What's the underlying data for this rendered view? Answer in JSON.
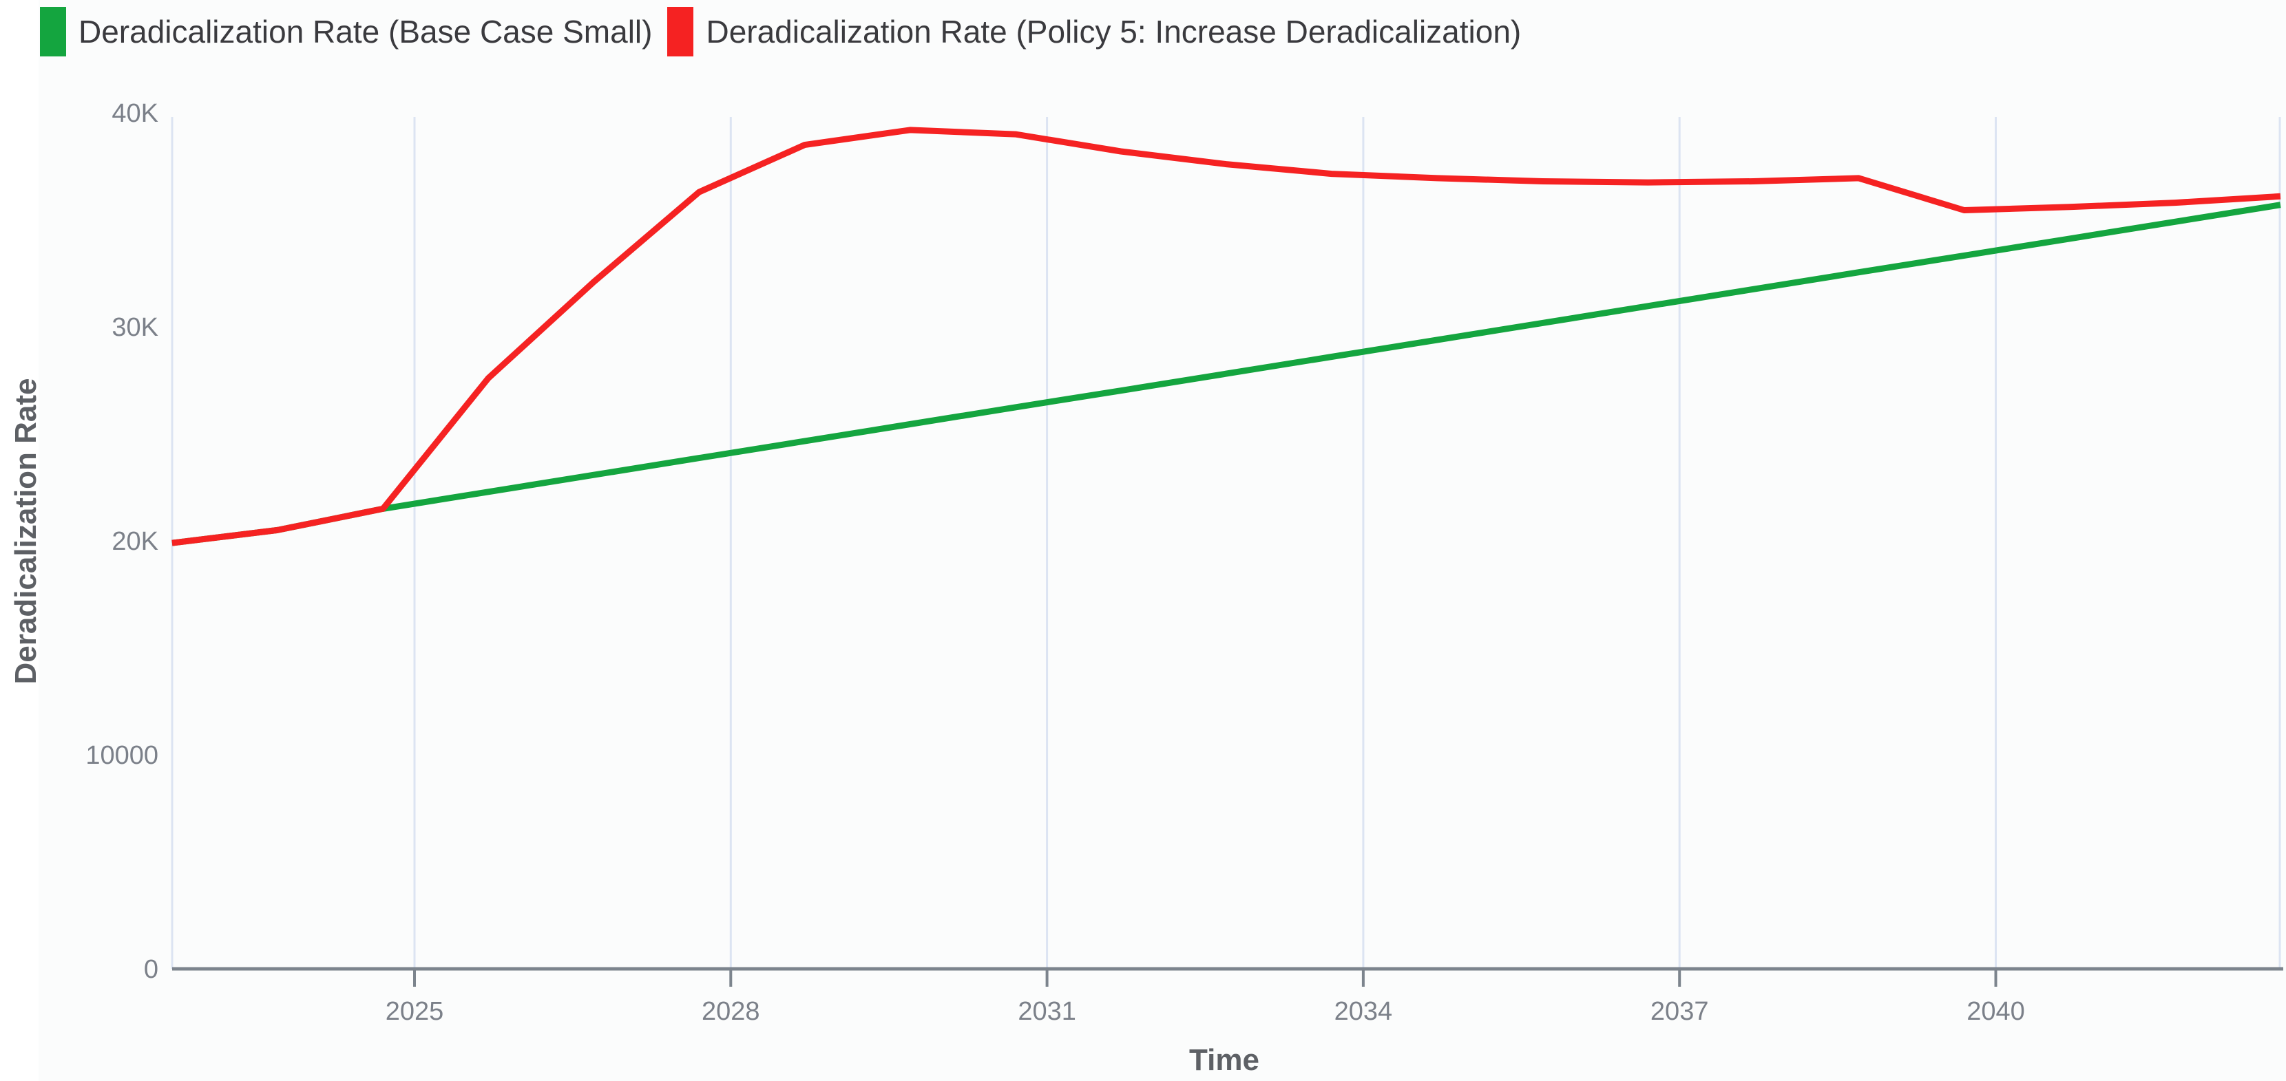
{
  "legend": {
    "note": "color swatches mirror chart_data.series colors"
  },
  "axes": {
    "x_title": "Time",
    "y_title": "Deradicalization Rate"
  },
  "chart_data": {
    "type": "line",
    "title": "",
    "xlabel": "Time",
    "ylabel": "Deradicalization Rate",
    "x": [
      2022.7,
      2023.7,
      2024.7,
      2025.7,
      2026.7,
      2027.7,
      2028.7,
      2029.7,
      2030.7,
      2031.7,
      2032.7,
      2033.7,
      2034.7,
      2035.7,
      2036.7,
      2037.7,
      2038.7,
      2039.7,
      2040.7,
      2041.7,
      2042.7
    ],
    "series": [
      {
        "name": "Deradicalization Rate (Base Case Small)",
        "color": "#14a53f",
        "values": [
          19900,
          20500,
          21500,
          22290,
          23080,
          23870,
          24660,
          25450,
          26240,
          27020,
          27810,
          28600,
          29390,
          30180,
          30970,
          31760,
          32550,
          33330,
          34120,
          34910,
          35700
        ]
      },
      {
        "name": "Deradicalization Rate (Policy 5: Increase Deradicalization)",
        "color": "#f52222",
        "values": [
          19900,
          20500,
          21500,
          27600,
          32100,
          36300,
          38500,
          39200,
          39000,
          38200,
          37600,
          37150,
          36950,
          36800,
          36750,
          36800,
          36950,
          35450,
          35600,
          35800,
          36100
        ]
      }
    ],
    "x_ticks": [
      {
        "value": 2025,
        "label": "2025"
      },
      {
        "value": 2028,
        "label": "2028"
      },
      {
        "value": 2031,
        "label": "2031"
      },
      {
        "value": 2034,
        "label": "2034"
      },
      {
        "value": 2037,
        "label": "2037"
      },
      {
        "value": 2040,
        "label": "2040"
      }
    ],
    "y_ticks": [
      {
        "value": 0,
        "label": "0"
      },
      {
        "value": 10000,
        "label": "10000"
      },
      {
        "value": 20000,
        "label": "20K"
      },
      {
        "value": 30000,
        "label": "30K"
      },
      {
        "value": 40000,
        "label": "40K"
      }
    ],
    "xlim": [
      2022.7,
      2042.7
    ],
    "ylim": [
      0,
      40000
    ],
    "grid": "vertical-only",
    "legend_position": "top-left"
  },
  "colors": {
    "gridline": "#dce4f2",
    "axis_baseline": "#7c848d",
    "tick_text": "#7b8089",
    "axis_title_text": "#5d6065",
    "legend_text": "#3a3a3e",
    "background": "#fbfcfc"
  }
}
